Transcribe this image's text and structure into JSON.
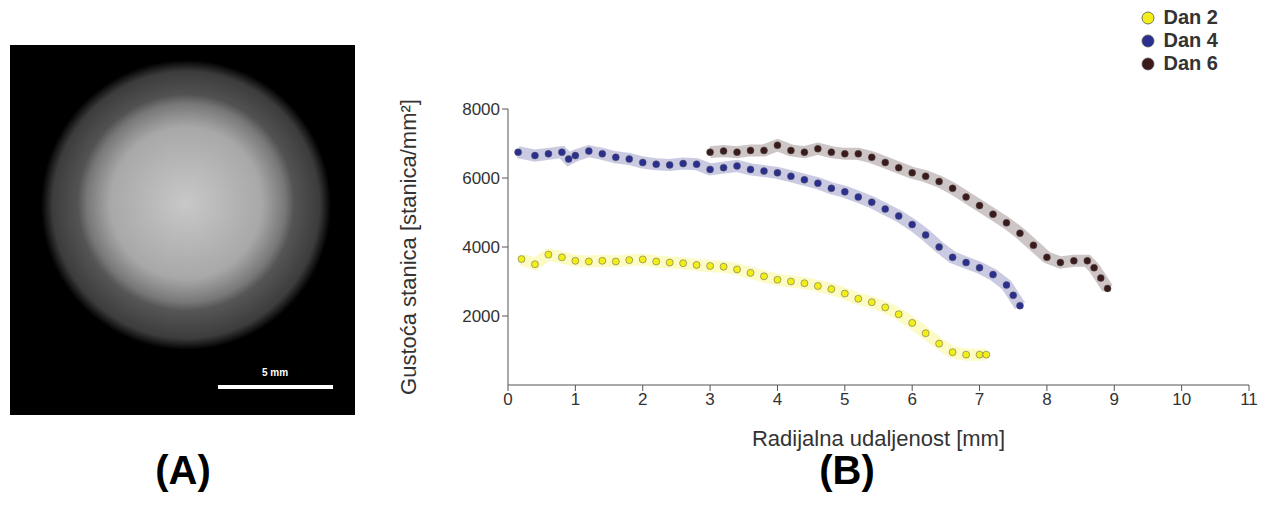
{
  "image": {
    "label": "(A)",
    "scale_bar": "5 mm"
  },
  "chart_data": {
    "type": "scatter",
    "label": "(B)",
    "x_label": "Radijalna udaljenost [mm]",
    "y_label": "Gustoća stanica [stanica/mm²]",
    "xlim": [
      0,
      11
    ],
    "xticks": [
      0,
      1,
      2,
      3,
      4,
      5,
      6,
      7,
      8,
      9,
      10,
      11
    ],
    "ylim": [
      0,
      8000
    ],
    "yticks": [
      2000,
      4000,
      6000,
      8000
    ],
    "legend": "upper right",
    "series": [
      {
        "name": "Dan 2",
        "color": "#f2ee1a",
        "x": [
          0.2,
          0.4,
          0.6,
          0.8,
          1.0,
          1.2,
          1.4,
          1.6,
          1.8,
          2.0,
          2.2,
          2.4,
          2.6,
          2.8,
          3.0,
          3.2,
          3.4,
          3.6,
          3.8,
          4.0,
          4.2,
          4.4,
          4.6,
          4.8,
          5.0,
          5.2,
          5.4,
          5.6,
          5.8,
          6.0,
          6.2,
          6.4,
          6.6,
          6.8,
          7.0,
          7.1
        ],
        "values": [
          3650,
          3500,
          3780,
          3700,
          3600,
          3580,
          3600,
          3580,
          3620,
          3640,
          3580,
          3550,
          3530,
          3480,
          3450,
          3430,
          3350,
          3250,
          3150,
          3050,
          3000,
          2950,
          2870,
          2780,
          2650,
          2500,
          2400,
          2250,
          2050,
          1800,
          1500,
          1200,
          950,
          880,
          880,
          880
        ]
      },
      {
        "name": "Dan 4",
        "color": "#2b2f8f",
        "x": [
          0.15,
          0.4,
          0.6,
          0.8,
          0.9,
          1.0,
          1.2,
          1.4,
          1.6,
          1.8,
          2.0,
          2.2,
          2.4,
          2.6,
          2.8,
          3.0,
          3.2,
          3.4,
          3.6,
          3.8,
          4.0,
          4.2,
          4.4,
          4.6,
          4.8,
          5.0,
          5.2,
          5.4,
          5.6,
          5.8,
          6.0,
          6.2,
          6.4,
          6.6,
          6.8,
          7.0,
          7.2,
          7.4,
          7.5,
          7.6
        ],
        "values": [
          6750,
          6650,
          6700,
          6750,
          6550,
          6650,
          6780,
          6700,
          6600,
          6550,
          6450,
          6400,
          6380,
          6420,
          6400,
          6250,
          6300,
          6350,
          6250,
          6200,
          6150,
          6050,
          5950,
          5850,
          5700,
          5600,
          5450,
          5300,
          5100,
          4900,
          4650,
          4350,
          4000,
          3700,
          3550,
          3400,
          3200,
          2900,
          2600,
          2300
        ]
      },
      {
        "name": "Dan 6",
        "color": "#3a1a1a",
        "x": [
          3.0,
          3.2,
          3.4,
          3.6,
          3.8,
          4.0,
          4.2,
          4.4,
          4.6,
          4.8,
          5.0,
          5.2,
          5.4,
          5.6,
          5.8,
          6.0,
          6.2,
          6.4,
          6.6,
          6.8,
          7.0,
          7.2,
          7.4,
          7.6,
          7.8,
          8.0,
          8.2,
          8.4,
          8.6,
          8.7,
          8.8,
          8.9
        ],
        "values": [
          6750,
          6780,
          6750,
          6800,
          6800,
          6950,
          6800,
          6750,
          6850,
          6750,
          6700,
          6700,
          6600,
          6450,
          6300,
          6150,
          6050,
          5900,
          5700,
          5450,
          5200,
          4950,
          4700,
          4400,
          4050,
          3700,
          3550,
          3600,
          3600,
          3400,
          3100,
          2800
        ]
      }
    ]
  }
}
